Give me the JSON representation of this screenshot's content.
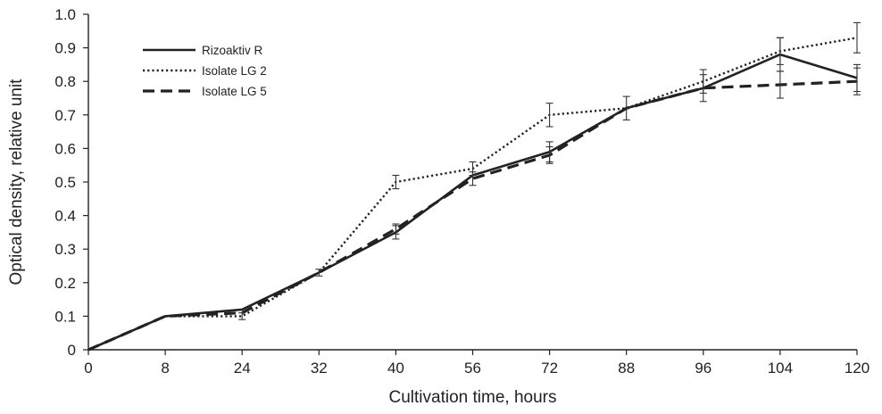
{
  "chart_data": {
    "type": "line",
    "title": "",
    "xlabel": "Cultivation time, hours",
    "ylabel": "Optical density, relative unit",
    "categories": [
      "0",
      "8",
      "24",
      "32",
      "40",
      "56",
      "72",
      "88",
      "96",
      "104",
      "120"
    ],
    "ylim": [
      0,
      1.0
    ],
    "yticks": [
      "0",
      "0.1",
      "0.2",
      "0.3",
      "0.4",
      "0.5",
      "0.6",
      "0.7",
      "0.8",
      "0.9",
      "1.0"
    ],
    "grid": false,
    "legend_position": "top-left",
    "series": [
      {
        "name": "Rizoaktiv R",
        "style": "solid",
        "values": [
          0,
          0.1,
          0.12,
          0.23,
          0.35,
          0.52,
          0.59,
          0.72,
          0.78,
          0.88,
          0.81
        ],
        "errors": [
          0,
          0,
          0,
          0,
          0.02,
          0,
          0.03,
          0,
          0,
          0.05,
          0.04
        ]
      },
      {
        "name": "Isolate LG 2",
        "style": "dotted",
        "values": [
          0,
          0.1,
          0.1,
          0.23,
          0.5,
          0.54,
          0.7,
          0.72,
          0.8,
          0.89,
          0.93
        ],
        "errors": [
          0,
          0,
          0.01,
          0.01,
          0.02,
          0.02,
          0.035,
          0,
          0.035,
          0.04,
          0.045
        ]
      },
      {
        "name": "Isolate LG 5",
        "style": "dashed",
        "values": [
          0,
          0.1,
          0.11,
          0.23,
          0.36,
          0.51,
          0.58,
          0.72,
          0.78,
          0.79,
          0.8
        ],
        "errors": [
          0,
          0,
          0,
          0,
          0.015,
          0.02,
          0.025,
          0.035,
          0.04,
          0.04,
          0.04
        ]
      }
    ]
  }
}
